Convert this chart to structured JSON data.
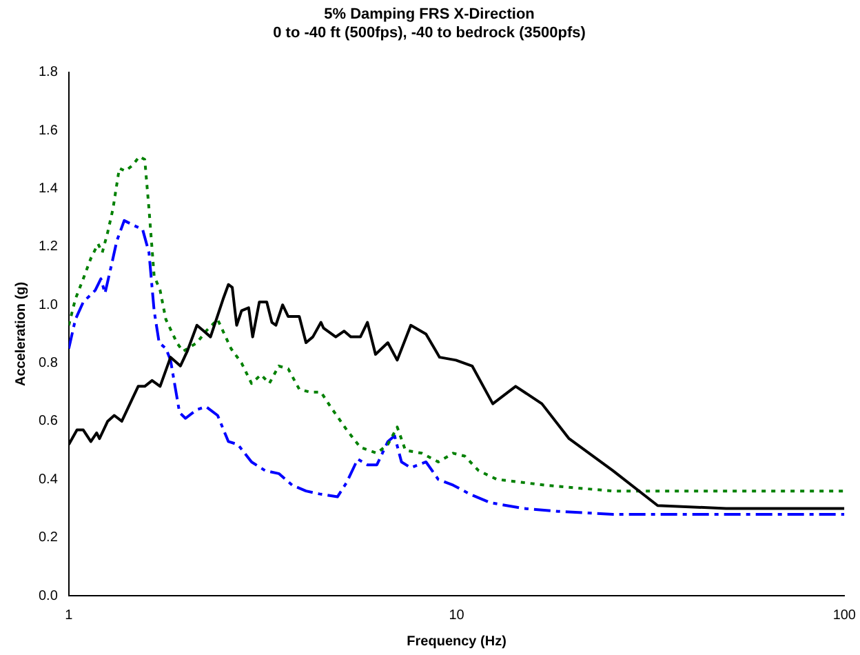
{
  "chart_data": {
    "type": "line",
    "title": "5% Damping FRS X-Direction",
    "subtitle": "0 to -40 ft (500fps), -40 to bedrock (3500pfs)",
    "xlabel": "Frequency (Hz)",
    "ylabel": "Acceleration (g)",
    "log": "x",
    "grid": false,
    "legend": false,
    "marker": "none",
    "xlim": [
      1,
      100
    ],
    "xticks": [
      1,
      10,
      100
    ],
    "ylim": [
      0,
      1.8
    ],
    "yticks": [
      {
        "value": 0,
        "label": "0.0"
      },
      {
        "value": 0.2,
        "label": "0.2"
      },
      {
        "value": 0.4,
        "label": "0.4"
      },
      {
        "value": 0.6,
        "label": "0.6"
      },
      {
        "value": 0.8,
        "label": "0.8"
      },
      {
        "value": 1,
        "label": "1.0"
      },
      {
        "value": 1.2,
        "label": "1.2"
      },
      {
        "value": 1.4,
        "label": "1.4"
      },
      {
        "value": 1.6,
        "label": "1.6"
      },
      {
        "value": 1.8,
        "label": "1.8"
      }
    ],
    "series": [
      {
        "color": "#000000",
        "line_style": "solid",
        "x": [
          1.0,
          1.05,
          1.09,
          1.14,
          1.18,
          1.2,
          1.26,
          1.31,
          1.37,
          1.45,
          1.51,
          1.57,
          1.64,
          1.72,
          1.83,
          1.94,
          2.02,
          2.14,
          2.23,
          2.32,
          2.5,
          2.58,
          2.64,
          2.71,
          2.79,
          2.91,
          2.98,
          3.1,
          3.24,
          3.34,
          3.42,
          3.56,
          3.68,
          3.93,
          4.09,
          4.26,
          4.47,
          4.54,
          4.88,
          5.13,
          5.34,
          5.65,
          5.89,
          6.18,
          6.65,
          7.03,
          7.62,
          8.34,
          9.04,
          9.96,
          10.97,
          12.4,
          14.2,
          16.6,
          19.5,
          25.3,
          33.0,
          49.5,
          100
        ],
        "values": [
          0.52,
          0.57,
          0.57,
          0.53,
          0.56,
          0.54,
          0.6,
          0.62,
          0.6,
          0.67,
          0.72,
          0.72,
          0.74,
          0.72,
          0.82,
          0.79,
          0.84,
          0.93,
          0.91,
          0.89,
          1.02,
          1.07,
          1.06,
          0.93,
          0.98,
          0.99,
          0.89,
          1.01,
          1.01,
          0.94,
          0.93,
          1.0,
          0.96,
          0.96,
          0.87,
          0.89,
          0.94,
          0.92,
          0.89,
          0.91,
          0.89,
          0.89,
          0.94,
          0.83,
          0.87,
          0.81,
          0.93,
          0.9,
          0.82,
          0.81,
          0.79,
          0.66,
          0.72,
          0.66,
          0.54,
          0.43,
          0.31,
          0.3,
          0.3
        ]
      },
      {
        "color": "#008000",
        "line_style": "dotted",
        "x": [
          1.0,
          1.04,
          1.09,
          1.14,
          1.19,
          1.22,
          1.26,
          1.3,
          1.35,
          1.4,
          1.46,
          1.52,
          1.57,
          1.61,
          1.66,
          1.72,
          1.78,
          1.9,
          1.97,
          2.14,
          2.26,
          2.42,
          2.62,
          2.79,
          2.96,
          3.13,
          3.29,
          3.48,
          3.68,
          3.93,
          4.19,
          4.47,
          4.73,
          5.21,
          5.65,
          6.23,
          6.65,
          7.03,
          7.38,
          8.13,
          8.97,
          9.8,
          10.5,
          11.4,
          12.7,
          14.7,
          16.9,
          20.6,
          25.3,
          100
        ],
        "values": [
          0.93,
          1.02,
          1.09,
          1.16,
          1.21,
          1.18,
          1.25,
          1.33,
          1.47,
          1.46,
          1.48,
          1.51,
          1.5,
          1.33,
          1.1,
          1.05,
          0.95,
          0.87,
          0.84,
          0.87,
          0.91,
          0.95,
          0.85,
          0.8,
          0.73,
          0.76,
          0.73,
          0.79,
          0.78,
          0.71,
          0.7,
          0.7,
          0.65,
          0.57,
          0.51,
          0.49,
          0.52,
          0.58,
          0.5,
          0.49,
          0.46,
          0.49,
          0.48,
          0.43,
          0.4,
          0.39,
          0.38,
          0.37,
          0.36,
          0.36
        ]
      },
      {
        "color": "#0000ff",
        "line_style": "dashed",
        "x": [
          1.0,
          1.04,
          1.09,
          1.17,
          1.21,
          1.24,
          1.29,
          1.33,
          1.39,
          1.49,
          1.55,
          1.61,
          1.66,
          1.71,
          1.78,
          1.83,
          1.93,
          2.0,
          2.14,
          2.26,
          2.42,
          2.58,
          2.73,
          2.96,
          3.21,
          3.48,
          3.77,
          4.09,
          4.43,
          4.93,
          5.21,
          5.56,
          5.89,
          6.23,
          6.65,
          6.92,
          7.21,
          7.62,
          8.34,
          8.97,
          9.8,
          10.8,
          12.2,
          14.9,
          18.3,
          25.3,
          37.9,
          100
        ],
        "values": [
          0.85,
          0.95,
          1.01,
          1.05,
          1.09,
          1.04,
          1.14,
          1.22,
          1.29,
          1.27,
          1.26,
          1.18,
          0.98,
          0.87,
          0.85,
          0.81,
          0.63,
          0.61,
          0.64,
          0.65,
          0.62,
          0.53,
          0.52,
          0.46,
          0.43,
          0.42,
          0.38,
          0.36,
          0.35,
          0.34,
          0.39,
          0.47,
          0.45,
          0.45,
          0.53,
          0.55,
          0.46,
          0.44,
          0.46,
          0.4,
          0.38,
          0.35,
          0.32,
          0.3,
          0.29,
          0.28,
          0.28,
          0.28
        ]
      }
    ]
  }
}
